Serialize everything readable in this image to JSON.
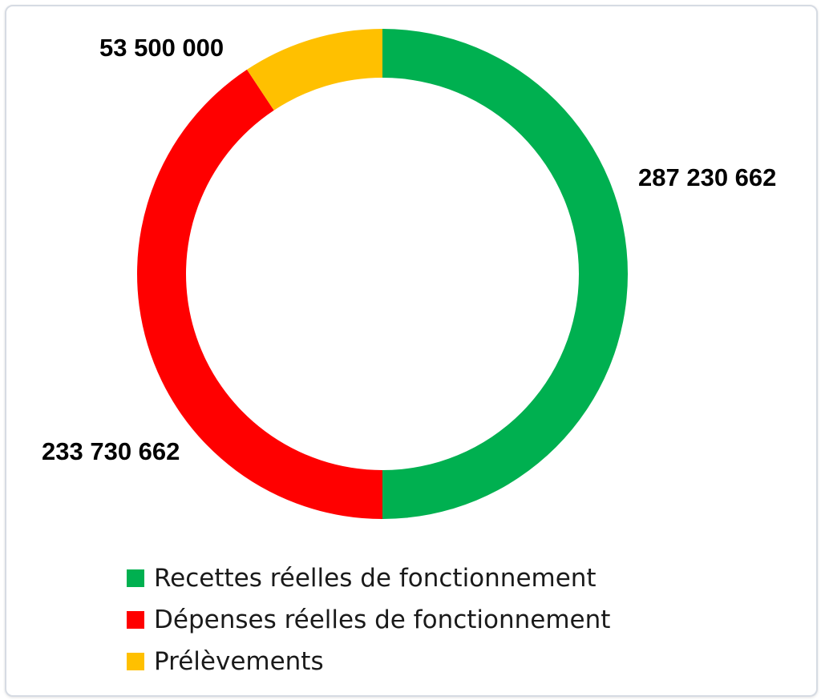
{
  "chart_data": {
    "type": "pie",
    "variant": "donut",
    "title": "",
    "categories": [
      "Recettes réelles de fonctionnement",
      "Dépenses réelles de fonctionnement",
      "Prélèvements"
    ],
    "values": [
      287230662,
      233730662,
      53500000
    ],
    "value_labels": [
      "287 230 662",
      "233 730 662",
      "53 500 000"
    ],
    "colors": [
      "#00b050",
      "#ff0000",
      "#ffc000"
    ],
    "legend_placement": "bottom"
  }
}
